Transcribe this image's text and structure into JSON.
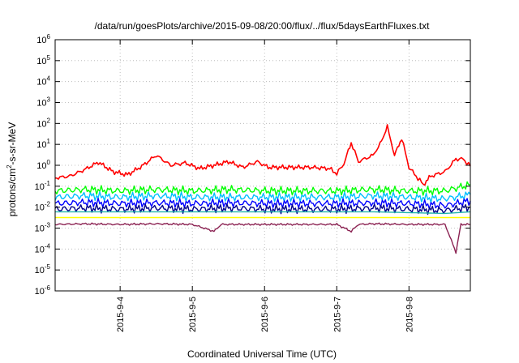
{
  "chart_data": {
    "type": "line",
    "title": "/data/run/goesPlots/archive/2015-09-08/20:00/flux/../flux/5daysEarthFluxes.txt",
    "xlabel": "Coordinated Universal Time (UTC)",
    "ylabel": "protons/cm2-s-sr-MeV",
    "ylabel_parts": {
      "pre": "protons/cm",
      "sup": "2",
      "post": "-s-sr-MeV"
    },
    "yscale": "log",
    "ylim": [
      1e-06,
      1000000.0
    ],
    "y_ticks": [
      {
        "base": "10",
        "exp": "6"
      },
      {
        "base": "10",
        "exp": "5"
      },
      {
        "base": "10",
        "exp": "4"
      },
      {
        "base": "10",
        "exp": "3"
      },
      {
        "base": "10",
        "exp": "2"
      },
      {
        "base": "10",
        "exp": "1"
      },
      {
        "base": "10",
        "exp": "0"
      },
      {
        "base": "10",
        "exp": "-1"
      },
      {
        "base": "10",
        "exp": "-2"
      },
      {
        "base": "10",
        "exp": "-3"
      },
      {
        "base": "10",
        "exp": "-4"
      },
      {
        "base": "10",
        "exp": "-5"
      },
      {
        "base": "10",
        "exp": "-6"
      }
    ],
    "xlim_days": [
      3.1,
      8.85
    ],
    "x_ticks": [
      {
        "label": "2015-9-4",
        "day": 4
      },
      {
        "label": "2015-9-5",
        "day": 5
      },
      {
        "label": "2015-9-6",
        "day": 6
      },
      {
        "label": "2015-9-7",
        "day": 7
      },
      {
        "label": "2015-9-8",
        "day": 8
      }
    ],
    "grid": true,
    "data_gap_days": [
      6.1,
      6.65
    ],
    "series": [
      {
        "color": "#ff0000",
        "points": [
          [
            3.1,
            0.25
          ],
          [
            3.3,
            0.3
          ],
          [
            3.5,
            0.6
          ],
          [
            3.7,
            1.4
          ],
          [
            3.9,
            0.5
          ],
          [
            4.1,
            0.35
          ],
          [
            4.3,
            0.9
          ],
          [
            4.5,
            3.0
          ],
          [
            4.7,
            1.0
          ],
          [
            4.9,
            1.3
          ],
          [
            5.1,
            0.7
          ],
          [
            5.3,
            1.0
          ],
          [
            5.5,
            1.5
          ],
          [
            5.7,
            0.8
          ],
          [
            5.9,
            1.5
          ],
          [
            6.05,
            0.8
          ],
          [
            6.65,
            0.8
          ],
          [
            6.9,
            0.7
          ],
          [
            7.0,
            0.4
          ],
          [
            7.1,
            1.2
          ],
          [
            7.2,
            12
          ],
          [
            7.3,
            1.5
          ],
          [
            7.5,
            3
          ],
          [
            7.6,
            10
          ],
          [
            7.7,
            70
          ],
          [
            7.8,
            3
          ],
          [
            7.9,
            20
          ],
          [
            8.0,
            0.8
          ],
          [
            8.1,
            0.3
          ],
          [
            8.2,
            0.12
          ],
          [
            8.3,
            0.3
          ],
          [
            8.5,
            0.5
          ],
          [
            8.65,
            2.0
          ],
          [
            8.75,
            2.0
          ],
          [
            8.85,
            0.9
          ]
        ]
      },
      {
        "color": "#00ff00",
        "points": [
          [
            3.1,
            0.06
          ],
          [
            3.5,
            0.07
          ],
          [
            4.0,
            0.06
          ],
          [
            4.5,
            0.07
          ],
          [
            5.0,
            0.06
          ],
          [
            5.5,
            0.07
          ],
          [
            6.05,
            0.06
          ],
          [
            6.65,
            0.06
          ],
          [
            7.0,
            0.06
          ],
          [
            7.5,
            0.07
          ],
          [
            8.0,
            0.06
          ],
          [
            8.5,
            0.06
          ],
          [
            8.85,
            0.12
          ]
        ]
      },
      {
        "color": "#00bfff",
        "points": [
          [
            3.1,
            0.03
          ],
          [
            3.5,
            0.035
          ],
          [
            4.0,
            0.03
          ],
          [
            4.5,
            0.035
          ],
          [
            5.0,
            0.03
          ],
          [
            5.5,
            0.03
          ],
          [
            6.05,
            0.03
          ],
          [
            6.65,
            0.03
          ],
          [
            7.0,
            0.03
          ],
          [
            7.5,
            0.035
          ],
          [
            8.0,
            0.03
          ],
          [
            8.5,
            0.025
          ],
          [
            8.85,
            0.04
          ]
        ]
      },
      {
        "color": "#0000ff",
        "points": [
          [
            3.1,
            0.015
          ],
          [
            3.5,
            0.017
          ],
          [
            4.0,
            0.015
          ],
          [
            4.5,
            0.016
          ],
          [
            5.0,
            0.015
          ],
          [
            5.5,
            0.016
          ],
          [
            6.05,
            0.015
          ],
          [
            6.65,
            0.015
          ],
          [
            7.0,
            0.015
          ],
          [
            7.5,
            0.016
          ],
          [
            8.0,
            0.015
          ],
          [
            8.5,
            0.012
          ],
          [
            8.85,
            0.02
          ]
        ]
      },
      {
        "color": "#00008b",
        "points": [
          [
            3.1,
            0.008
          ],
          [
            3.5,
            0.009
          ],
          [
            4.0,
            0.008
          ],
          [
            4.5,
            0.009
          ],
          [
            5.0,
            0.008
          ],
          [
            5.5,
            0.009
          ],
          [
            6.05,
            0.008
          ],
          [
            6.65,
            0.008
          ],
          [
            7.0,
            0.008
          ],
          [
            7.5,
            0.009
          ],
          [
            8.0,
            0.008
          ],
          [
            8.5,
            0.007
          ],
          [
            8.85,
            0.01
          ]
        ]
      },
      {
        "color": "#20b2aa",
        "points": [
          [
            3.1,
            0.006
          ],
          [
            4.0,
            0.006
          ],
          [
            5.0,
            0.006
          ],
          [
            6.05,
            0.006
          ],
          [
            6.65,
            0.006
          ],
          [
            7.5,
            0.006
          ],
          [
            8.5,
            0.005
          ],
          [
            8.85,
            0.006
          ]
        ]
      },
      {
        "color": "#ffff00",
        "points": [
          [
            3.1,
            0.0032
          ],
          [
            4.0,
            0.0032
          ],
          [
            5.0,
            0.0032
          ],
          [
            6.05,
            0.0032
          ],
          [
            6.65,
            0.0032
          ],
          [
            7.5,
            0.0032
          ],
          [
            8.5,
            0.0032
          ],
          [
            8.85,
            0.0032
          ]
        ]
      },
      {
        "color": "#8b2252",
        "points": [
          [
            3.1,
            0.0015
          ],
          [
            3.5,
            0.0016
          ],
          [
            4.0,
            0.0015
          ],
          [
            4.5,
            0.0016
          ],
          [
            5.0,
            0.0015
          ],
          [
            5.3,
            0.0007
          ],
          [
            5.4,
            0.0015
          ],
          [
            6.05,
            0.0015
          ],
          [
            6.65,
            0.0015
          ],
          [
            7.0,
            0.0015
          ],
          [
            7.2,
            0.0007
          ],
          [
            7.3,
            0.0015
          ],
          [
            7.5,
            0.0016
          ],
          [
            8.0,
            0.0015
          ],
          [
            8.5,
            0.0015
          ],
          [
            8.65,
            7e-05
          ],
          [
            8.72,
            0.0015
          ],
          [
            8.85,
            0.0015
          ]
        ]
      }
    ]
  }
}
